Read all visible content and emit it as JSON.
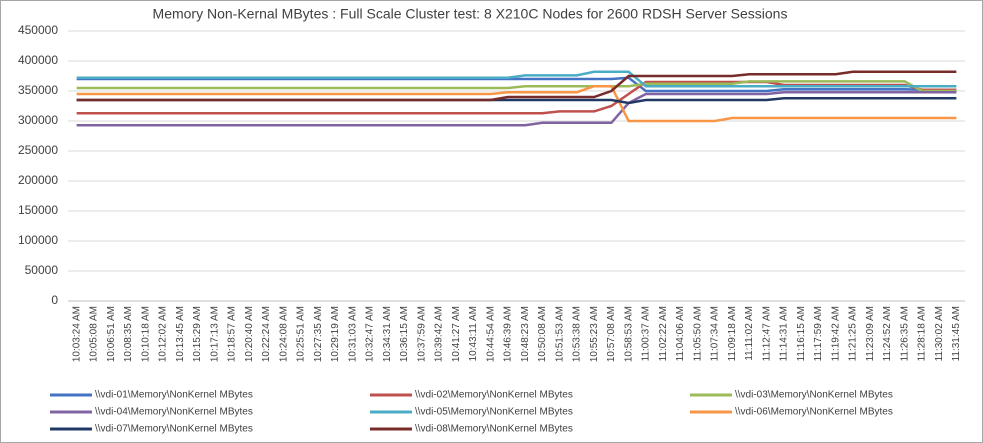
{
  "chart_data": {
    "type": "line",
    "title": "Memory Non-Kernal MBytes : Full Scale Cluster test: 8 X210C Nodes for 2600 RDSH Server Sessions",
    "categories": [
      "10:03:24 AM",
      "10:05:08 AM",
      "10:06:51 AM",
      "10:08:35 AM",
      "10:10:18 AM",
      "10:12:02 AM",
      "10:13:45 AM",
      "10:15:29 AM",
      "10:17:13 AM",
      "10:18:57 AM",
      "10:20:40 AM",
      "10:22:24 AM",
      "10:24:08 AM",
      "10:25:51 AM",
      "10:27:35 AM",
      "10:29:19 AM",
      "10:31:03 AM",
      "10:32:47 AM",
      "10:34:31 AM",
      "10:36:15 AM",
      "10:37:59 AM",
      "10:39:42 AM",
      "10:41:27 AM",
      "10:43:11 AM",
      "10:44:54 AM",
      "10:46:39 AM",
      "10:48:23 AM",
      "10:50:08 AM",
      "10:51:53 AM",
      "10:53:38 AM",
      "10:55:23 AM",
      "10:57:08 AM",
      "10:58:53 AM",
      "11:00:37 AM",
      "11:02:22 AM",
      "11:04:06 AM",
      "11:05:50 AM",
      "11:07:34 AM",
      "11:09:18 AM",
      "11:11:02 AM",
      "11:12:47 AM",
      "11:14:31 AM",
      "11:16:15 AM",
      "11:17:59 AM",
      "11:19:42 AM",
      "11:21:25 AM",
      "11:23:09 AM",
      "11:24:52 AM",
      "11:26:35 AM",
      "11:28:18 AM",
      "11:30:02 AM",
      "11:31:45 AM"
    ],
    "series": [
      {
        "name": "\\\\vdi-01\\Memory\\NonKernel MBytes",
        "color": "#4472c4",
        "values": [
          370000,
          370000,
          370000,
          370000,
          370000,
          370000,
          370000,
          370000,
          370000,
          370000,
          370000,
          370000,
          370000,
          370000,
          370000,
          370000,
          370000,
          370000,
          370000,
          370000,
          370000,
          370000,
          370000,
          370000,
          370000,
          370000,
          370000,
          370000,
          370000,
          370000,
          370000,
          370000,
          372000,
          350000,
          350000,
          350000,
          350000,
          350000,
          350000,
          350000,
          350000,
          353000,
          353000,
          353000,
          353000,
          353000,
          353000,
          353000,
          353000,
          352000,
          352000,
          352000
        ]
      },
      {
        "name": "\\\\vdi-02\\Memory\\NonKernel MBytes",
        "color": "#c0504d",
        "values": [
          313000,
          313000,
          313000,
          313000,
          313000,
          313000,
          313000,
          313000,
          313000,
          313000,
          313000,
          313000,
          313000,
          313000,
          313000,
          313000,
          313000,
          313000,
          313000,
          313000,
          313000,
          313000,
          313000,
          313000,
          313000,
          313000,
          313000,
          313000,
          316000,
          316000,
          316000,
          325000,
          345000,
          365000,
          365000,
          365000,
          365000,
          365000,
          365000,
          365000,
          365000,
          360000,
          360000,
          360000,
          360000,
          360000,
          360000,
          360000,
          360000,
          352000,
          352000,
          352000
        ]
      },
      {
        "name": "\\\\vdi-03\\Memory\\NonKernel MBytes",
        "color": "#9bbb59",
        "values": [
          355000,
          355000,
          355000,
          355000,
          355000,
          355000,
          355000,
          355000,
          355000,
          355000,
          355000,
          355000,
          355000,
          355000,
          355000,
          355000,
          355000,
          355000,
          355000,
          355000,
          355000,
          355000,
          355000,
          355000,
          355000,
          355000,
          358000,
          358000,
          358000,
          358000,
          358000,
          358000,
          358000,
          362000,
          362000,
          362000,
          362000,
          362000,
          362000,
          366000,
          366000,
          366000,
          366000,
          366000,
          366000,
          366000,
          366000,
          366000,
          366000,
          350000,
          350000,
          350000
        ]
      },
      {
        "name": "\\\\vdi-04\\Memory\\NonKernel MBytes",
        "color": "#8064a2",
        "values": [
          293000,
          293000,
          293000,
          293000,
          293000,
          293000,
          293000,
          293000,
          293000,
          293000,
          293000,
          293000,
          293000,
          293000,
          293000,
          293000,
          293000,
          293000,
          293000,
          293000,
          293000,
          293000,
          293000,
          293000,
          293000,
          293000,
          293000,
          297000,
          297000,
          297000,
          297000,
          297000,
          330000,
          345000,
          345000,
          345000,
          345000,
          345000,
          345000,
          345000,
          345000,
          348000,
          348000,
          348000,
          348000,
          348000,
          348000,
          348000,
          348000,
          348000,
          348000,
          348000
        ]
      },
      {
        "name": "\\\\vdi-05\\Memory\\NonKernel MBytes",
        "color": "#4bacc6",
        "values": [
          372000,
          372000,
          372000,
          372000,
          372000,
          372000,
          372000,
          372000,
          372000,
          372000,
          372000,
          372000,
          372000,
          372000,
          372000,
          372000,
          372000,
          372000,
          372000,
          372000,
          372000,
          372000,
          372000,
          372000,
          372000,
          372000,
          376000,
          376000,
          376000,
          376000,
          382000,
          382000,
          382000,
          358000,
          358000,
          358000,
          358000,
          358000,
          358000,
          358000,
          358000,
          358000,
          358000,
          358000,
          358000,
          358000,
          358000,
          358000,
          358000,
          358000,
          358000,
          358000
        ]
      },
      {
        "name": "\\\\vdi-06\\Memory\\NonKernel MBytes",
        "color": "#f79646",
        "values": [
          345000,
          345000,
          345000,
          345000,
          345000,
          345000,
          345000,
          345000,
          345000,
          345000,
          345000,
          345000,
          345000,
          345000,
          345000,
          345000,
          345000,
          345000,
          345000,
          345000,
          345000,
          345000,
          345000,
          345000,
          345000,
          348000,
          348000,
          348000,
          348000,
          348000,
          358000,
          358000,
          300000,
          300000,
          300000,
          300000,
          300000,
          300000,
          305000,
          305000,
          305000,
          305000,
          305000,
          305000,
          305000,
          305000,
          305000,
          305000,
          305000,
          305000,
          305000,
          305000
        ]
      },
      {
        "name": "\\\\vdi-07\\Memory\\NonKernel MBytes",
        "color": "#1f3864",
        "values": [
          335000,
          335000,
          335000,
          335000,
          335000,
          335000,
          335000,
          335000,
          335000,
          335000,
          335000,
          335000,
          335000,
          335000,
          335000,
          335000,
          335000,
          335000,
          335000,
          335000,
          335000,
          335000,
          335000,
          335000,
          335000,
          335000,
          335000,
          335000,
          335000,
          335000,
          335000,
          335000,
          330000,
          335000,
          335000,
          335000,
          335000,
          335000,
          335000,
          335000,
          335000,
          338000,
          338000,
          338000,
          338000,
          338000,
          338000,
          338000,
          338000,
          338000,
          338000,
          338000
        ]
      },
      {
        "name": "\\\\vdi-08\\Memory\\NonKernel MBytes",
        "color": "#772c2a",
        "values": [
          335000,
          335000,
          335000,
          335000,
          335000,
          335000,
          335000,
          335000,
          335000,
          335000,
          335000,
          335000,
          335000,
          335000,
          335000,
          335000,
          335000,
          335000,
          335000,
          335000,
          335000,
          335000,
          335000,
          335000,
          335000,
          340000,
          340000,
          340000,
          340000,
          340000,
          340000,
          350000,
          375000,
          375000,
          375000,
          375000,
          375000,
          375000,
          375000,
          378000,
          378000,
          378000,
          378000,
          378000,
          378000,
          382000,
          382000,
          382000,
          382000,
          382000,
          382000,
          382000
        ]
      }
    ],
    "ylim": [
      0,
      450000
    ],
    "yticks": [
      0,
      50000,
      100000,
      150000,
      200000,
      250000,
      300000,
      350000,
      400000,
      450000
    ],
    "grid": true
  }
}
